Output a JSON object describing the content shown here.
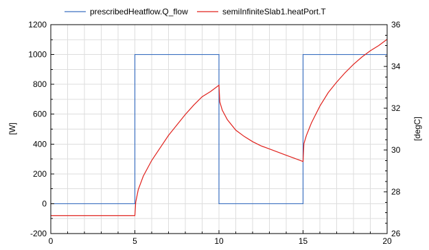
{
  "chart_data": {
    "type": "line",
    "legend": {
      "placement": "top",
      "entries": [
        {
          "name": "prescribedHeatflow.Q_flow",
          "color": "#3a6fc0"
        },
        {
          "name": "semiInfiniteSlab1.heatPort.T",
          "color": "#e0201b"
        }
      ]
    },
    "x_axis": {
      "range": [
        0,
        20
      ],
      "ticks": [
        0,
        5,
        10,
        15,
        20
      ],
      "minor_step": 1
    },
    "y_left": {
      "label": "[W]",
      "range": [
        -200,
        1200
      ],
      "ticks": [
        -200,
        0,
        200,
        400,
        600,
        800,
        1000,
        1200
      ],
      "tick_labels": [
        "-200",
        "0",
        "200",
        "400",
        "600",
        "800",
        "1000",
        "1200"
      ]
    },
    "y_right": {
      "label": "[degC]",
      "range": [
        26,
        36
      ],
      "ticks": [
        26,
        28,
        30,
        32,
        34,
        36
      ],
      "tick_labels": [
        "26",
        "28",
        "30",
        "32",
        "34",
        "36"
      ]
    },
    "grid": true,
    "series": [
      {
        "name": "prescribedHeatflow.Q_flow",
        "axis": "left",
        "color": "#3a6fc0",
        "step": true,
        "x": [
          0,
          5,
          5,
          10,
          10,
          15,
          15,
          20
        ],
        "y": [
          0,
          0,
          1000,
          1000,
          0,
          0,
          1000,
          1000
        ]
      },
      {
        "name": "semiInfiniteSlab1.heatPort.T",
        "axis": "right",
        "color": "#e0201b",
        "x": [
          0,
          5,
          5.05,
          5.2,
          5.5,
          6,
          6.5,
          7,
          7.5,
          8,
          8.5,
          9,
          9.5,
          10,
          10.05,
          10.2,
          10.5,
          11,
          11.5,
          12,
          12.5,
          13,
          13.5,
          14,
          14.5,
          15,
          15.05,
          15.2,
          15.5,
          16,
          16.5,
          17,
          17.5,
          18,
          18.5,
          19,
          19.5,
          20
        ],
        "y": [
          26.86,
          26.86,
          27.5,
          28.1,
          28.75,
          29.5,
          30.1,
          30.7,
          31.2,
          31.7,
          32.15,
          32.55,
          32.8,
          33.1,
          32.3,
          31.9,
          31.45,
          30.95,
          30.65,
          30.4,
          30.2,
          30.05,
          29.9,
          29.75,
          29.6,
          29.45,
          30.3,
          30.7,
          31.3,
          32.1,
          32.75,
          33.25,
          33.7,
          34.1,
          34.45,
          34.75,
          35.0,
          35.3
        ]
      }
    ]
  }
}
